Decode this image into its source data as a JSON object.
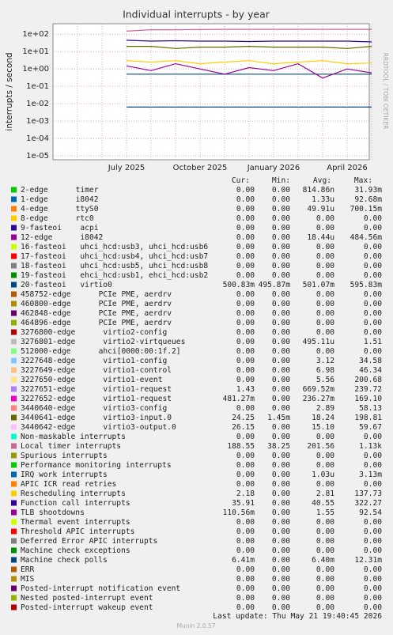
{
  "chart_data": {
    "type": "line",
    "title": "Individual interrupts - by year",
    "y_label": "interrupts / second",
    "yscale": "log",
    "grid": true,
    "ylim": [
      6e-06,
      400
    ],
    "yticks": [
      {
        "value": 1e-05,
        "label": "1e-05"
      },
      {
        "value": 0.0001,
        "label": "1e-04"
      },
      {
        "value": 0.001,
        "label": "1e-03"
      },
      {
        "value": 0.01,
        "label": "1e-02"
      },
      {
        "value": 0.1,
        "label": "1e-01"
      },
      {
        "value": 1,
        "label": "1e+00"
      },
      {
        "value": 10,
        "label": "1e+01"
      },
      {
        "value": 100,
        "label": "1e+02"
      }
    ],
    "categories": [
      null,
      null,
      null,
      "July 2025",
      null,
      null,
      "October 2025",
      null,
      null,
      "January 2026",
      null,
      null,
      "April 2026",
      null
    ],
    "stat_headers": [
      "Cur:",
      "Min:",
      "Avg:",
      "Max:"
    ],
    "series": [
      {
        "name": "2-edge",
        "info": "timer",
        "color": "#00cc00",
        "cur": "0.00",
        "min": "0.00",
        "avg": "814.86n",
        "max": "31.93m"
      },
      {
        "name": "1-edge",
        "info": "i8042",
        "color": "#0066b3",
        "cur": "0.00",
        "min": "0.00",
        "avg": "1.33u",
        "max": "92.68m"
      },
      {
        "name": "4-edge",
        "info": "ttyS0",
        "color": "#ff8000",
        "cur": "0.00",
        "min": "0.00",
        "avg": "49.91u",
        "max": "700.15m"
      },
      {
        "name": "8-edge",
        "info": "rtc0",
        "color": "#ffcc00",
        "cur": "0.00",
        "min": "0.00",
        "avg": "0.00",
        "max": "0.00"
      },
      {
        "name": "9-fasteoi",
        "info": "acpi",
        "color": "#330099",
        "cur": "0.00",
        "min": "0.00",
        "avg": "0.00",
        "max": "0.00"
      },
      {
        "name": "12-edge",
        "info": "i8042",
        "color": "#990099",
        "cur": "0.00",
        "min": "0.00",
        "avg": "18.44u",
        "max": "484.56m"
      },
      {
        "name": "16-fasteoi",
        "info": "uhci_hcd:usb3, uhci_hcd:usb6",
        "color": "#ccff00",
        "cur": "0.00",
        "min": "0.00",
        "avg": "0.00",
        "max": "0.00"
      },
      {
        "name": "17-fasteoi",
        "info": "uhci_hcd:usb4, uhci_hcd:usb7",
        "color": "#ff0000",
        "cur": "0.00",
        "min": "0.00",
        "avg": "0.00",
        "max": "0.00"
      },
      {
        "name": "18-fasteoi",
        "info": "uhci_hcd:usb5, uhci_hcd:usb8",
        "color": "#808080",
        "cur": "0.00",
        "min": "0.00",
        "avg": "0.00",
        "max": "0.00"
      },
      {
        "name": "19-fasteoi",
        "info": "ehci_hcd:usb1, ehci_hcd:usb2",
        "color": "#008f00",
        "cur": "0.00",
        "min": "0.00",
        "avg": "0.00",
        "max": "0.00"
      },
      {
        "name": "20-fasteoi",
        "info": "virtio0",
        "color": "#00487d",
        "cur": "500.83m",
        "min": "495.87m",
        "avg": "501.07m",
        "max": "595.83m",
        "values": [
          null,
          null,
          null,
          0.5,
          0.5,
          0.5,
          0.5,
          0.5,
          0.5,
          0.5,
          0.5,
          0.5,
          0.5,
          0.5
        ]
      },
      {
        "name": "458752-edge",
        "info": "PCIe PME, aerdrv",
        "color": "#b35a00",
        "cur": "0.00",
        "min": "0.00",
        "avg": "0.00",
        "max": "0.00"
      },
      {
        "name": "460800-edge",
        "info": "PCIe PME, aerdrv",
        "color": "#b38f00",
        "cur": "0.00",
        "min": "0.00",
        "avg": "0.00",
        "max": "0.00"
      },
      {
        "name": "462848-edge",
        "info": "PCIe PME, aerdrv",
        "color": "#6b006b",
        "cur": "0.00",
        "min": "0.00",
        "avg": "0.00",
        "max": "0.00"
      },
      {
        "name": "464896-edge",
        "info": "PCIe PME, aerdrv",
        "color": "#8fb300",
        "cur": "0.00",
        "min": "0.00",
        "avg": "0.00",
        "max": "0.00"
      },
      {
        "name": "3276800-edge",
        "info": "virtio2-config",
        "color": "#b30000",
        "cur": "0.00",
        "min": "0.00",
        "avg": "0.00",
        "max": "0.00"
      },
      {
        "name": "3276801-edge",
        "info": "virtio2-virtqueues",
        "color": "#bebebe",
        "cur": "0.00",
        "min": "0.00",
        "avg": "495.11u",
        "max": "1.51"
      },
      {
        "name": "512000-edge",
        "info": "ahci[0000:00:1f.2]",
        "color": "#80ff80",
        "cur": "0.00",
        "min": "0.00",
        "avg": "0.00",
        "max": "0.00"
      },
      {
        "name": "3227648-edge",
        "info": "virtio1-config",
        "color": "#80c9ff",
        "cur": "0.00",
        "min": "0.00",
        "avg": "3.12",
        "max": "34.58"
      },
      {
        "name": "3227649-edge",
        "info": "virtio1-control",
        "color": "#ffc080",
        "cur": "0.00",
        "min": "0.00",
        "avg": "6.98",
        "max": "46.34"
      },
      {
        "name": "3227650-edge",
        "info": "virtio1-event",
        "color": "#ffe680",
        "cur": "0.00",
        "min": "0.00",
        "avg": "5.56",
        "max": "200.68"
      },
      {
        "name": "3227651-edge",
        "info": "virtio1-request",
        "color": "#aa80ff",
        "cur": "1.43",
        "min": "0.00",
        "avg": "669.52m",
        "max": "239.72"
      },
      {
        "name": "3227652-edge",
        "info": "virtio1-request",
        "color": "#ee00cc",
        "cur": "481.27m",
        "min": "0.00",
        "avg": "236.27m",
        "max": "169.10"
      },
      {
        "name": "3440640-edge",
        "info": "virtio3-config",
        "color": "#ff8080",
        "cur": "0.00",
        "min": "0.00",
        "avg": "2.89",
        "max": "58.13"
      },
      {
        "name": "3440641-edge",
        "info": "virtio3-input.0",
        "color": "#666600",
        "cur": "24.25",
        "min": "1.45m",
        "avg": "18.24",
        "max": "198.81",
        "values": [
          null,
          null,
          null,
          20,
          20,
          15,
          18,
          18,
          20,
          18,
          18,
          18,
          15,
          20
        ]
      },
      {
        "name": "3440642-edge",
        "info": "virtio3-output.0",
        "color": "#ffbfff",
        "cur": "26.15",
        "min": "0.00",
        "avg": "15.10",
        "max": "59.67"
      },
      {
        "name": "Non-maskable interrupts",
        "color": "#00ffcc",
        "cur": "0.00",
        "min": "0.00",
        "avg": "0.00",
        "max": "0.00"
      },
      {
        "name": "Local timer interrupts",
        "color": "#cc6699",
        "cur": "188.55",
        "min": "38.25",
        "avg": "201.56",
        "max": "1.13k",
        "values": [
          null,
          null,
          null,
          150,
          180,
          180,
          185,
          190,
          190,
          190,
          190,
          190,
          190,
          190
        ]
      },
      {
        "name": "Spurious interrupts",
        "color": "#999900",
        "cur": "0.00",
        "min": "0.00",
        "avg": "0.00",
        "max": "0.00"
      },
      {
        "name": "Performance monitoring interrupts",
        "color": "#00cc00",
        "cur": "0.00",
        "min": "0.00",
        "avg": "0.00",
        "max": "0.00"
      },
      {
        "name": "IRQ work interrupts",
        "color": "#0066b3",
        "cur": "0.00",
        "min": "0.00",
        "avg": "1.03u",
        "max": "3.13m"
      },
      {
        "name": "APIC ICR read retries",
        "color": "#ff8000",
        "cur": "0.00",
        "min": "0.00",
        "avg": "0.00",
        "max": "0.00"
      },
      {
        "name": "Rescheduling interrupts",
        "color": "#ffcc00",
        "cur": "2.18",
        "min": "0.00",
        "avg": "2.81",
        "max": "137.73",
        "values": [
          null,
          null,
          null,
          3,
          2.5,
          3,
          2,
          2.5,
          3,
          2,
          2.5,
          3,
          2,
          2.2
        ]
      },
      {
        "name": "Function call interrupts",
        "color": "#330099",
        "cur": "35.91",
        "min": "0.00",
        "avg": "40.55",
        "max": "322.27",
        "values": [
          null,
          null,
          null,
          45,
          40,
          42,
          40,
          40,
          38,
          40,
          40,
          40,
          40,
          36
        ]
      },
      {
        "name": "TLB shootdowns",
        "color": "#990099",
        "cur": "110.56m",
        "min": "0.00",
        "avg": "1.55",
        "max": "92.54",
        "values": [
          null,
          null,
          null,
          1.5,
          0.8,
          2,
          1,
          0.5,
          1.2,
          0.8,
          2,
          0.3,
          1,
          0.6
        ]
      },
      {
        "name": "Thermal event interrupts",
        "color": "#ccff00",
        "cur": "0.00",
        "min": "0.00",
        "avg": "0.00",
        "max": "0.00"
      },
      {
        "name": "Threshold APIC interrupts",
        "color": "#ff0000",
        "cur": "0.00",
        "min": "0.00",
        "avg": "0.00",
        "max": "0.00"
      },
      {
        "name": "Deferred Error APIC interrupts",
        "color": "#808080",
        "cur": "0.00",
        "min": "0.00",
        "avg": "0.00",
        "max": "0.00"
      },
      {
        "name": "Machine check exceptions",
        "color": "#008f00",
        "cur": "0.00",
        "min": "0.00",
        "avg": "0.00",
        "max": "0.00"
      },
      {
        "name": "Machine check polls",
        "color": "#00487d",
        "cur": "6.41m",
        "min": "0.00",
        "avg": "6.40m",
        "max": "12.31m",
        "values": [
          null,
          null,
          null,
          0.0064,
          0.0064,
          0.0064,
          0.0064,
          0.0064,
          0.0064,
          0.0064,
          0.0064,
          0.0064,
          0.0064,
          0.0064
        ]
      },
      {
        "name": "ERR",
        "color": "#b35a00",
        "cur": "0.00",
        "min": "0.00",
        "avg": "0.00",
        "max": "0.00"
      },
      {
        "name": "MIS",
        "color": "#b38f00",
        "cur": "0.00",
        "min": "0.00",
        "avg": "0.00",
        "max": "0.00"
      },
      {
        "name": "Posted-interrupt notification event",
        "color": "#6b006b",
        "cur": "0.00",
        "min": "0.00",
        "avg": "0.00",
        "max": "0.00"
      },
      {
        "name": "Nested posted-interrupt event",
        "color": "#8fb300",
        "cur": "0.00",
        "min": "0.00",
        "avg": "0.00",
        "max": "0.00"
      },
      {
        "name": "Posted-interrupt wakeup event",
        "color": "#b30000",
        "cur": "0.00",
        "min": "0.00",
        "avg": "0.00",
        "max": "0.00"
      }
    ]
  },
  "watermark": "RRDTOOL / TOBI OETIKER",
  "last_update": "Last update: Thu May 21 19:40:45 2026",
  "footer": "Munin 2.0.57"
}
